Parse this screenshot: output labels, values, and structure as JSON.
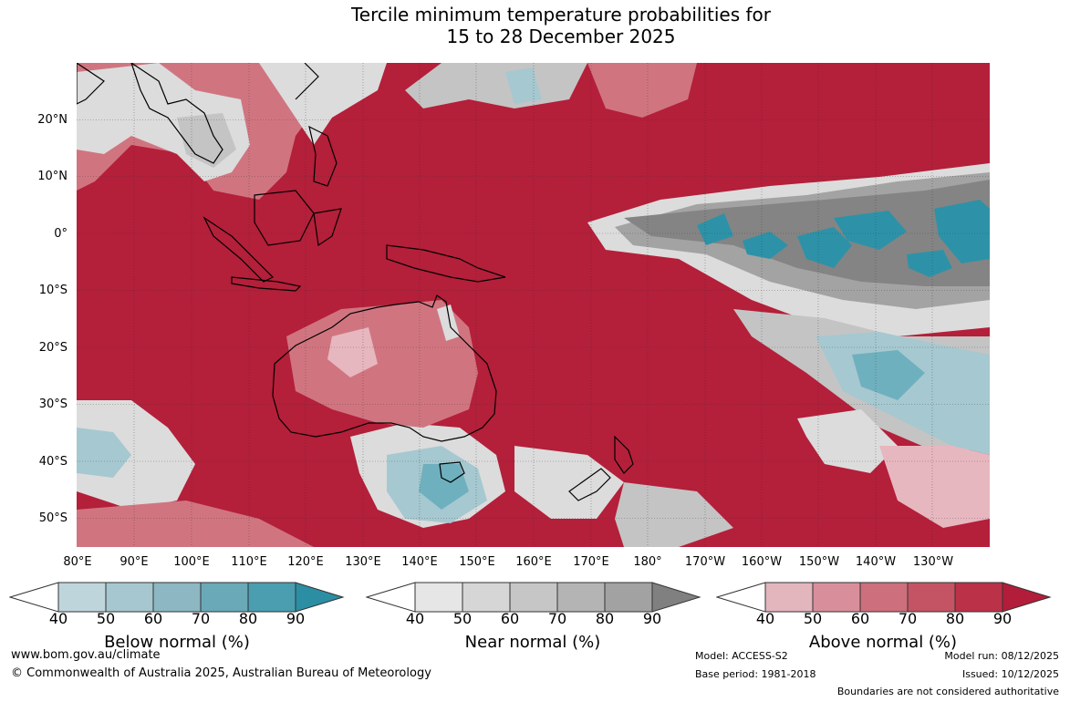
{
  "title": {
    "line1": "Tercile minimum temperature probabilities for",
    "line2": "15 to 28 December 2025"
  },
  "map": {
    "lat_labels": [
      "20°N",
      "10°N",
      "0°",
      "10°S",
      "20°S",
      "30°S",
      "40°S",
      "50°S"
    ],
    "lon_labels": [
      "80°E",
      "90°E",
      "100°E",
      "110°E",
      "120°E",
      "130°E",
      "140°E",
      "150°E",
      "160°E",
      "170°E",
      "180°",
      "170°W",
      "160°W",
      "150°W",
      "140°W",
      "130°W"
    ],
    "colors": {
      "above_90": "#b41f3a",
      "above_80": "#bd3a4f",
      "above_70": "#c75566",
      "above_60": "#d07580",
      "above_50": "#df98a3",
      "above_40": "#e7b7bf",
      "near_90": "#848484",
      "near_70": "#a3a3a3",
      "near_50": "#c4c4c4",
      "near_40": "#dcdcdc",
      "below_90": "#2d92a8",
      "below_70": "#6fb0be",
      "below_50": "#a6c8d0",
      "below_40": "#c3d8dd"
    }
  },
  "legends": [
    {
      "label": "Below normal (%)",
      "ticks": [
        "40",
        "50",
        "60",
        "70",
        "80",
        "90"
      ],
      "colors": [
        "#bfd5dc",
        "#a6c7cf",
        "#8cb7c3",
        "#6aa9b7",
        "#4a9eb0",
        "#2b8ea3"
      ]
    },
    {
      "label": "Near normal (%)",
      "ticks": [
        "40",
        "50",
        "60",
        "70",
        "80",
        "90"
      ],
      "colors": [
        "#e6e6e6",
        "#d6d6d6",
        "#c6c6c6",
        "#b4b4b4",
        "#a2a2a2",
        "#808080"
      ]
    },
    {
      "label": "Above normal (%)",
      "ticks": [
        "40",
        "50",
        "60",
        "70",
        "80",
        "90"
      ],
      "colors": [
        "#e3b5bd",
        "#d88f9b",
        "#cd6f7c",
        "#c45463",
        "#bb3148",
        "#b21d3a"
      ]
    }
  ],
  "footer": {
    "website": "www.bom.gov.au/climate",
    "copyright": "© Commonwealth of Australia 2025, Australian Bureau of Meteorology",
    "model": "Model: ACCESS-S2",
    "base_period": "Base period: 1981-2018",
    "model_run": "Model run: 08/12/2025",
    "issued": "Issued: 10/12/2025",
    "disclaimer": "Boundaries are not considered authoritative"
  }
}
